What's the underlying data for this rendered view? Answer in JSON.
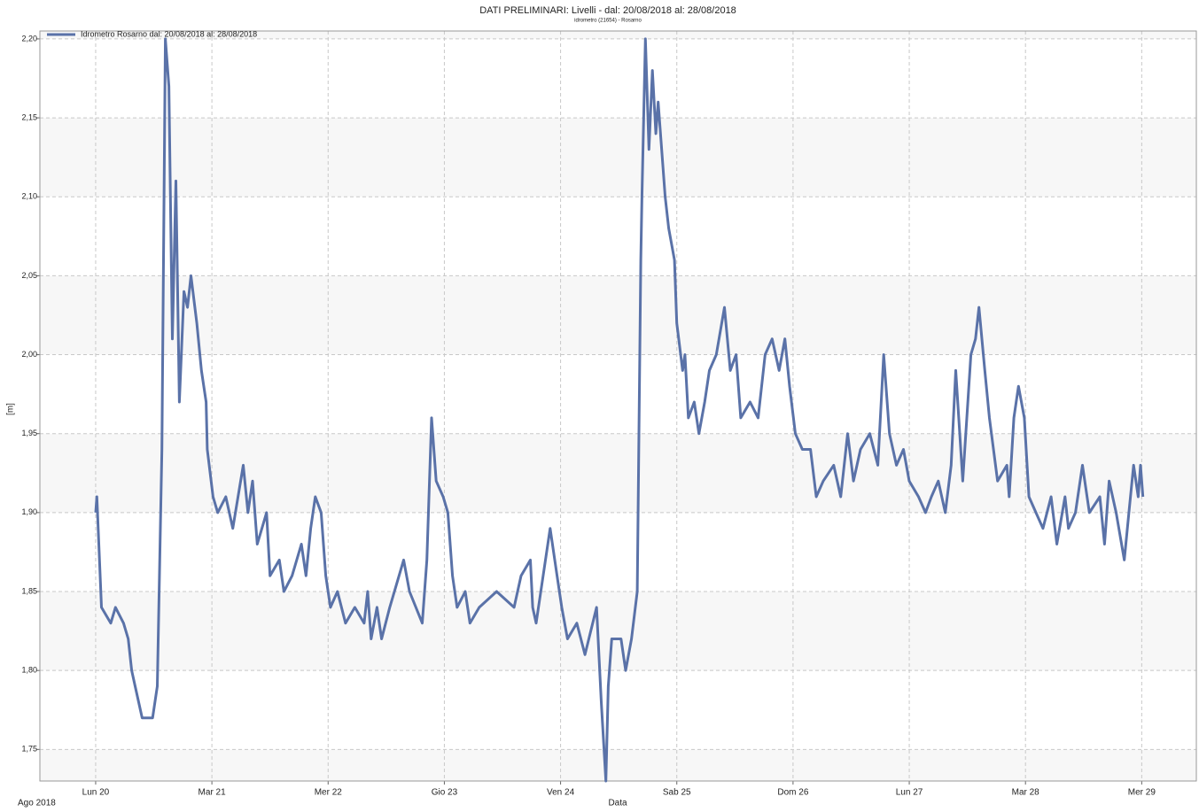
{
  "chart_data": {
    "type": "line",
    "title": "DATI PRELIMINARI: Livelli -  dal: 20/08/2018 al: 28/08/2018",
    "subtitle": "idrometro (21654)  - Rosarno",
    "x_label": "Data",
    "y_label": "[m]",
    "x_period_label": "Ago 2018",
    "grid": true,
    "legend": "upper left",
    "xlim": [
      19.52,
      29.47
    ],
    "ylim": [
      1.73,
      2.205
    ],
    "xticks": [
      {
        "value": 20,
        "label": "Lun 20"
      },
      {
        "value": 21,
        "label": "Mar 21"
      },
      {
        "value": 22,
        "label": "Mer 22"
      },
      {
        "value": 23,
        "label": "Gio 23"
      },
      {
        "value": 24,
        "label": "Ven 24"
      },
      {
        "value": 25,
        "label": "Sab 25"
      },
      {
        "value": 26,
        "label": "Dom 26"
      },
      {
        "value": 27,
        "label": "Lun 27"
      },
      {
        "value": 28,
        "label": "Mar 28"
      },
      {
        "value": 29,
        "label": "Mer 29"
      }
    ],
    "yticks": [
      {
        "value": 1.75,
        "label": "1,75"
      },
      {
        "value": 1.8,
        "label": "1,80"
      },
      {
        "value": 1.85,
        "label": "1,85"
      },
      {
        "value": 1.9,
        "label": "1,90"
      },
      {
        "value": 1.95,
        "label": "1,95"
      },
      {
        "value": 2.0,
        "label": "2,00"
      },
      {
        "value": 2.05,
        "label": "2,05"
      },
      {
        "value": 2.1,
        "label": "2,10"
      },
      {
        "value": 2.15,
        "label": "2,15"
      },
      {
        "value": 2.2,
        "label": "2,20"
      }
    ],
    "x": [
      20.0,
      20.01,
      20.05,
      20.13,
      20.17,
      20.24,
      20.28,
      20.31,
      20.34,
      20.4,
      20.49,
      20.53,
      20.57,
      20.6,
      20.63,
      20.66,
      20.69,
      20.72,
      20.76,
      20.79,
      20.82,
      20.87,
      20.91,
      20.95,
      20.96,
      21.01,
      21.05,
      21.12,
      21.18,
      21.27,
      21.31,
      21.35,
      21.39,
      21.47,
      21.5,
      21.58,
      21.62,
      21.69,
      21.77,
      21.81,
      21.85,
      21.89,
      21.94,
      21.98,
      22.02,
      22.08,
      22.15,
      22.23,
      22.31,
      22.34,
      22.37,
      22.42,
      22.46,
      22.53,
      22.61,
      22.65,
      22.7,
      22.81,
      22.85,
      22.89,
      22.93,
      22.99,
      23.03,
      23.07,
      23.11,
      23.18,
      23.22,
      23.3,
      23.45,
      23.6,
      23.66,
      23.74,
      23.76,
      23.79,
      23.85,
      23.91,
      23.97,
      24.01,
      24.06,
      24.14,
      24.21,
      24.31,
      24.35,
      24.39,
      24.41,
      24.44,
      24.52,
      24.56,
      24.61,
      24.66,
      24.69,
      24.7,
      24.73,
      24.76,
      24.79,
      24.82,
      24.84,
      24.9,
      24.93,
      24.98,
      25.0,
      25.05,
      25.07,
      25.1,
      25.15,
      25.19,
      25.24,
      25.28,
      25.34,
      25.41,
      25.46,
      25.51,
      25.55,
      25.63,
      25.7,
      25.76,
      25.82,
      25.88,
      25.93,
      25.97,
      26.02,
      26.08,
      26.15,
      26.2,
      26.26,
      26.35,
      26.41,
      26.47,
      26.52,
      26.58,
      26.66,
      26.73,
      26.78,
      26.83,
      26.89,
      26.95,
      27.0,
      27.08,
      27.14,
      27.19,
      27.25,
      27.31,
      27.36,
      27.4,
      27.46,
      27.53,
      27.57,
      27.6,
      27.65,
      27.69,
      27.76,
      27.84,
      27.86,
      27.9,
      27.94,
      27.99,
      28.03,
      28.09,
      28.15,
      28.22,
      28.27,
      28.34,
      28.37,
      28.43,
      28.49,
      28.55,
      28.64,
      28.68,
      28.72,
      28.78,
      28.85,
      28.89,
      28.93,
      28.97,
      28.99,
      29.01
    ],
    "series": [
      {
        "name": "Idrometro Rosarno  dal: 20/08/2018 al: 28/08/2018",
        "color": "#5a72a8",
        "values": [
          1.9,
          1.91,
          1.84,
          1.83,
          1.84,
          1.83,
          1.82,
          1.8,
          1.79,
          1.77,
          1.77,
          1.79,
          1.94,
          2.2,
          2.17,
          2.01,
          2.11,
          1.97,
          2.04,
          2.03,
          2.05,
          2.02,
          1.99,
          1.97,
          1.94,
          1.91,
          1.9,
          1.91,
          1.89,
          1.93,
          1.9,
          1.92,
          1.88,
          1.9,
          1.86,
          1.87,
          1.85,
          1.86,
          1.88,
          1.86,
          1.89,
          1.91,
          1.9,
          1.86,
          1.84,
          1.85,
          1.83,
          1.84,
          1.83,
          1.85,
          1.82,
          1.84,
          1.82,
          1.84,
          1.86,
          1.87,
          1.85,
          1.83,
          1.87,
          1.96,
          1.92,
          1.91,
          1.9,
          1.86,
          1.84,
          1.85,
          1.83,
          1.84,
          1.85,
          1.84,
          1.86,
          1.87,
          1.84,
          1.83,
          1.86,
          1.89,
          1.86,
          1.84,
          1.82,
          1.83,
          1.81,
          1.84,
          1.78,
          1.73,
          1.79,
          1.82,
          1.82,
          1.8,
          1.82,
          1.85,
          2.06,
          2.1,
          2.2,
          2.13,
          2.18,
          2.14,
          2.16,
          2.1,
          2.08,
          2.06,
          2.02,
          1.99,
          2.0,
          1.96,
          1.97,
          1.95,
          1.97,
          1.99,
          2.0,
          2.03,
          1.99,
          2.0,
          1.96,
          1.97,
          1.96,
          2.0,
          2.01,
          1.99,
          2.01,
          1.98,
          1.95,
          1.94,
          1.94,
          1.91,
          1.92,
          1.93,
          1.91,
          1.95,
          1.92,
          1.94,
          1.95,
          1.93,
          2.0,
          1.95,
          1.93,
          1.94,
          1.92,
          1.91,
          1.9,
          1.91,
          1.92,
          1.9,
          1.93,
          1.99,
          1.92,
          2.0,
          2.01,
          2.03,
          1.99,
          1.96,
          1.92,
          1.93,
          1.91,
          1.96,
          1.98,
          1.96,
          1.91,
          1.9,
          1.89,
          1.91,
          1.88,
          1.91,
          1.89,
          1.9,
          1.93,
          1.9,
          1.91,
          1.88,
          1.92,
          1.9,
          1.87,
          1.9,
          1.93,
          1.91,
          1.93,
          1.91
        ]
      }
    ]
  }
}
